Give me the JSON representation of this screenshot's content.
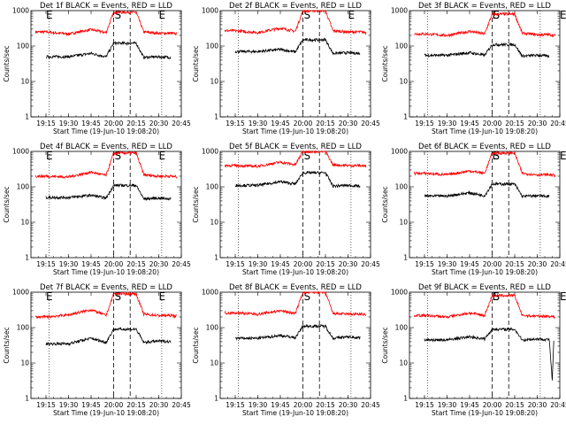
{
  "chart_data": [
    {
      "type": "line",
      "title": "Det  1f BLACK = Events, RED = LLD",
      "xlabel": "Start Time (19-Jun-10 19:08:20)",
      "ylabel": "Counts/sec",
      "yscale": "log",
      "ylim": [
        1,
        1000
      ],
      "xlim_sec_of_day": [
        68700,
        74700
      ],
      "x_ticks": [
        "19:15",
        "19:30",
        "19:45",
        "20:00",
        "20:15",
        "20:30",
        "20:45"
      ],
      "y_ticks": [
        "1",
        "10",
        "100",
        "1000"
      ],
      "markers": [
        {
          "label": "E",
          "time": "19:15"
        },
        {
          "label": "S",
          "time": "20:00"
        },
        {
          "label": "E",
          "time": "20:30"
        }
      ],
      "gap": [
        "20:00",
        "20:15"
      ],
      "series": [
        {
          "color": "#ff0000",
          "x": [
            "19:08",
            "19:15",
            "19:30",
            "19:45",
            "19:55",
            "20:00",
            "20:15",
            "20:20",
            "20:30",
            "20:38",
            "20:42"
          ],
          "values": [
            250,
            250,
            220,
            290,
            240,
            900,
            900,
            250,
            230,
            230,
            220
          ]
        },
        {
          "color": "#000000",
          "x": [
            "19:15",
            "19:30",
            "19:45",
            "19:55",
            "20:00",
            "20:15",
            "20:20",
            "20:30",
            "20:38"
          ],
          "values": [
            50,
            50,
            62,
            50,
            120,
            120,
            48,
            50,
            48
          ]
        }
      ]
    },
    {
      "type": "line",
      "title": "Det  2f BLACK = Events, RED = LLD",
      "xlabel": "Start Time (19-Jun-10 19:08:20)",
      "ylabel": "Counts/sec",
      "yscale": "log",
      "ylim": [
        1,
        1000
      ],
      "xlim_sec_of_day": [
        68700,
        74700
      ],
      "x_ticks": [
        "19:15",
        "19:30",
        "19:45",
        "20:00",
        "20:15",
        "20:30",
        "20:45"
      ],
      "y_ticks": [
        "1",
        "10",
        "100",
        "1000"
      ],
      "markers": [
        {
          "label": "S",
          "time": "20:00"
        },
        {
          "label": "E",
          "time": "20:30"
        }
      ],
      "gap": [
        "20:00",
        "20:15"
      ],
      "series": [
        {
          "color": "#ff0000",
          "x": [
            "19:08",
            "19:15",
            "19:30",
            "19:45",
            "19:55",
            "20:00",
            "20:15",
            "20:20",
            "20:30",
            "20:38",
            "20:42"
          ],
          "values": [
            270,
            270,
            240,
            320,
            260,
            1000,
            1000,
            270,
            250,
            250,
            240
          ]
        },
        {
          "color": "#000000",
          "x": [
            "19:15",
            "19:30",
            "19:45",
            "19:55",
            "20:00",
            "20:15",
            "20:20",
            "20:30",
            "20:38"
          ],
          "values": [
            70,
            70,
            80,
            68,
            150,
            150,
            62,
            65,
            62
          ]
        }
      ]
    },
    {
      "type": "line",
      "title": "Det  3f BLACK = Events, RED = LLD",
      "xlabel": "Start Time (19-Jun-10 19:08:20)",
      "ylabel": "Counts/sec",
      "yscale": "log",
      "ylim": [
        1,
        1000
      ],
      "xlim_sec_of_day": [
        68700,
        74700
      ],
      "x_ticks": [
        "19:15",
        "19:30",
        "19:45",
        "20:00",
        "20:15",
        "20:30",
        "20:45"
      ],
      "y_ticks": [
        "1",
        "10",
        "100",
        "1000"
      ],
      "markers": [
        {
          "label": "E",
          "time": "20:00"
        },
        {
          "label": "S",
          "time": "20:00"
        },
        {
          "label": "E",
          "time": "20:45"
        }
      ],
      "gap": [
        "20:00",
        "20:15"
      ],
      "series": [
        {
          "color": "#ff0000",
          "x": [
            "19:08",
            "19:15",
            "19:30",
            "19:45",
            "19:55",
            "20:00",
            "20:15",
            "20:20",
            "20:30",
            "20:38",
            "20:42"
          ],
          "values": [
            220,
            220,
            200,
            260,
            220,
            800,
            800,
            230,
            210,
            210,
            200
          ]
        },
        {
          "color": "#000000",
          "x": [
            "19:15",
            "19:30",
            "19:45",
            "19:55",
            "20:00",
            "20:15",
            "20:20",
            "20:30",
            "20:38"
          ],
          "values": [
            55,
            55,
            65,
            55,
            110,
            110,
            52,
            55,
            52
          ]
        }
      ]
    },
    {
      "type": "line",
      "title": "Det  4f BLACK = Events, RED = LLD",
      "xlabel": "Start Time (19-Jun-10 19:08:20)",
      "ylabel": "Counts/sec",
      "yscale": "log",
      "ylim": [
        1,
        1000
      ],
      "xlim_sec_of_day": [
        68700,
        74700
      ],
      "x_ticks": [
        "19:15",
        "19:30",
        "19:45",
        "20:00",
        "20:15",
        "20:30",
        "20:45"
      ],
      "y_ticks": [
        "1",
        "10",
        "100",
        "1000"
      ],
      "markers": [
        {
          "label": "E",
          "time": "19:15"
        },
        {
          "label": "S",
          "time": "20:00"
        },
        {
          "label": "E",
          "time": "20:30"
        }
      ],
      "gap": [
        "20:00",
        "20:15"
      ],
      "series": [
        {
          "color": "#ff0000",
          "x": [
            "19:08",
            "19:15",
            "19:30",
            "19:45",
            "19:55",
            "20:00",
            "20:15",
            "20:20",
            "20:30",
            "20:38",
            "20:42"
          ],
          "values": [
            200,
            200,
            190,
            260,
            210,
            900,
            900,
            220,
            200,
            200,
            190
          ]
        },
        {
          "color": "#000000",
          "x": [
            "19:15",
            "19:30",
            "19:45",
            "19:55",
            "20:00",
            "20:15",
            "20:20",
            "20:30",
            "20:38"
          ],
          "values": [
            50,
            50,
            58,
            48,
            110,
            110,
            46,
            48,
            46
          ]
        }
      ]
    },
    {
      "type": "line",
      "title": "Det  5f BLACK = Events, RED = LLD",
      "xlabel": "Start Time (19-Jun-10 19:08:20)",
      "ylabel": "Counts/sec",
      "yscale": "log",
      "ylim": [
        1,
        1000
      ],
      "xlim_sec_of_day": [
        68700,
        74700
      ],
      "x_ticks": [
        "19:15",
        "19:30",
        "19:45",
        "20:00",
        "20:15",
        "20:30",
        "20:45"
      ],
      "y_ticks": [
        "1",
        "10",
        "100",
        "1000"
      ],
      "markers": [
        {
          "label": "S",
          "time": "20:00"
        }
      ],
      "gap": [
        "20:00",
        "20:15"
      ],
      "series": [
        {
          "color": "#ff0000",
          "x": [
            "19:08",
            "19:15",
            "19:30",
            "19:45",
            "19:55",
            "20:00",
            "20:15",
            "20:20",
            "20:30",
            "20:38",
            "20:42"
          ],
          "values": [
            400,
            400,
            380,
            500,
            420,
            1000,
            1000,
            420,
            400,
            400,
            380
          ]
        },
        {
          "color": "#000000",
          "x": [
            "19:15",
            "19:30",
            "19:45",
            "19:55",
            "20:00",
            "20:15",
            "20:20",
            "20:30",
            "20:38"
          ],
          "values": [
            110,
            110,
            140,
            120,
            250,
            250,
            105,
            110,
            105
          ]
        }
      ]
    },
    {
      "type": "line",
      "title": "Det  6f BLACK = Events, RED = LLD",
      "xlabel": "Start Time (19-Jun-10 19:08:20)",
      "ylabel": "Counts/sec",
      "yscale": "log",
      "ylim": [
        1,
        1000
      ],
      "xlim_sec_of_day": [
        68700,
        74700
      ],
      "x_ticks": [
        "19:15",
        "19:30",
        "19:45",
        "20:00",
        "20:15",
        "20:30",
        "20:45"
      ],
      "y_ticks": [
        "1",
        "10",
        "100",
        "1000"
      ],
      "markers": [
        {
          "label": "E",
          "time": "20:00"
        },
        {
          "label": "S",
          "time": "20:00"
        },
        {
          "label": "E",
          "time": "20:45"
        }
      ],
      "gap": [
        "20:00",
        "20:15"
      ],
      "series": [
        {
          "color": "#ff0000",
          "x": [
            "19:08",
            "19:15",
            "19:30",
            "19:45",
            "19:55",
            "20:00",
            "20:15",
            "20:20",
            "20:30",
            "20:38",
            "20:42"
          ],
          "values": [
            240,
            240,
            220,
            280,
            240,
            900,
            900,
            240,
            220,
            220,
            210
          ]
        },
        {
          "color": "#000000",
          "x": [
            "19:15",
            "19:30",
            "19:45",
            "19:55",
            "20:00",
            "20:15",
            "20:20",
            "20:30",
            "20:38"
          ],
          "values": [
            55,
            55,
            68,
            56,
            120,
            120,
            54,
            56,
            54
          ]
        }
      ]
    },
    {
      "type": "line",
      "title": "Det  7f BLACK = Events, RED = LLD",
      "xlabel": "Start Time (19-Jun-10 19:08:20)",
      "ylabel": "Counts/sec",
      "yscale": "log",
      "ylim": [
        1,
        1000
      ],
      "xlim_sec_of_day": [
        68700,
        74700
      ],
      "x_ticks": [
        "19:15",
        "19:30",
        "19:45",
        "20:00",
        "20:15",
        "20:30",
        "20:45"
      ],
      "y_ticks": [
        "1",
        "10",
        "100",
        "1000"
      ],
      "markers": [
        {
          "label": "E",
          "time": "19:15"
        },
        {
          "label": "S",
          "time": "20:00"
        },
        {
          "label": "E",
          "time": "20:30"
        }
      ],
      "gap": [
        "20:00",
        "20:15"
      ],
      "series": [
        {
          "color": "#ff0000",
          "x": [
            "19:08",
            "19:15",
            "19:30",
            "19:45",
            "19:55",
            "20:00",
            "20:15",
            "20:20",
            "20:30",
            "20:38",
            "20:42"
          ],
          "values": [
            200,
            200,
            230,
            320,
            220,
            900,
            900,
            240,
            220,
            220,
            210
          ]
        },
        {
          "color": "#000000",
          "x": [
            "19:15",
            "19:30",
            "19:45",
            "19:55",
            "20:00",
            "20:15",
            "20:20",
            "20:30",
            "20:38"
          ],
          "values": [
            35,
            35,
            50,
            38,
            90,
            90,
            38,
            42,
            40
          ]
        }
      ]
    },
    {
      "type": "line",
      "title": "Det  8f BLACK = Events, RED = LLD",
      "xlabel": "Start Time (19-Jun-10 19:08:20)",
      "ylabel": "Counts/sec",
      "yscale": "log",
      "ylim": [
        1,
        1000
      ],
      "xlim_sec_of_day": [
        68700,
        74700
      ],
      "x_ticks": [
        "19:15",
        "19:30",
        "19:45",
        "20:00",
        "20:15",
        "20:30",
        "20:45"
      ],
      "y_ticks": [
        "1",
        "10",
        "100",
        "1000"
      ],
      "markers": [
        {
          "label": "S",
          "time": "20:00"
        }
      ],
      "gap": [
        "20:00",
        "20:15"
      ],
      "series": [
        {
          "color": "#ff0000",
          "x": [
            "19:08",
            "19:15",
            "19:30",
            "19:45",
            "19:55",
            "20:00",
            "20:15",
            "20:20",
            "20:30",
            "20:38",
            "20:42"
          ],
          "values": [
            260,
            260,
            240,
            300,
            250,
            1000,
            1000,
            250,
            240,
            240,
            230
          ]
        },
        {
          "color": "#000000",
          "x": [
            "19:15",
            "19:30",
            "19:45",
            "19:55",
            "20:00",
            "20:15",
            "20:20",
            "20:30",
            "20:38"
          ],
          "values": [
            50,
            50,
            60,
            52,
            110,
            110,
            50,
            55,
            52
          ]
        }
      ]
    },
    {
      "type": "line",
      "title": "Det  9f BLACK = Events, RED = LLD",
      "xlabel": "Start Time (19-Jun-10 19:08:20)",
      "ylabel": "Counts/sec",
      "yscale": "log",
      "ylim": [
        1,
        1000
      ],
      "xlim_sec_of_day": [
        68700,
        74700
      ],
      "x_ticks": [
        "19:15",
        "19:30",
        "19:45",
        "20:00",
        "20:15",
        "20:30",
        "20:45"
      ],
      "y_ticks": [
        "1",
        "10",
        "100",
        "1000"
      ],
      "markers": [
        {
          "label": "E",
          "time": "20:00"
        },
        {
          "label": "S",
          "time": "20:00"
        },
        {
          "label": "E",
          "time": "20:45"
        }
      ],
      "gap": [
        "20:00",
        "20:15"
      ],
      "series": [
        {
          "color": "#ff0000",
          "x": [
            "19:08",
            "19:15",
            "19:30",
            "19:45",
            "19:55",
            "20:00",
            "20:15",
            "20:20",
            "20:30",
            "20:38",
            "20:42"
          ],
          "values": [
            220,
            220,
            200,
            260,
            220,
            800,
            800,
            220,
            210,
            210,
            200
          ]
        },
        {
          "color": "#000000",
          "x": [
            "19:15",
            "19:30",
            "19:45",
            "19:55",
            "20:00",
            "20:15",
            "20:20",
            "20:30",
            "20:38",
            "20:40",
            "20:41"
          ],
          "values": [
            45,
            45,
            55,
            48,
            90,
            90,
            45,
            48,
            46,
            3,
            45
          ]
        }
      ]
    }
  ]
}
